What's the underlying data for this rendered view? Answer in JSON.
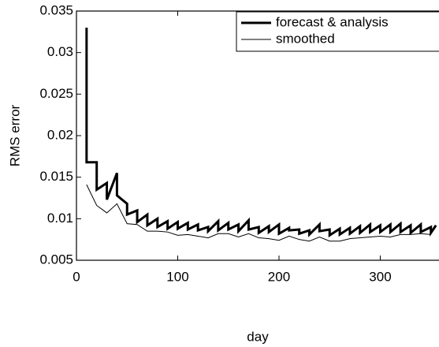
{
  "chart_data": {
    "type": "line",
    "xlabel": "day",
    "ylabel": "RMS error",
    "xlim": [
      0,
      358
    ],
    "ylim": [
      0.005,
      0.035
    ],
    "xticks": [
      0,
      100,
      200,
      300
    ],
    "yticks": [
      0.005,
      0.01,
      0.015,
      0.02,
      0.025,
      0.03,
      0.035
    ],
    "legend": "upper right",
    "series": [
      {
        "name": "forecast & analysis",
        "color": "#000000",
        "width": 3,
        "x": [
          10,
          10,
          20,
          20,
          30,
          30,
          40,
          40,
          50,
          50,
          60,
          60,
          70,
          70,
          80,
          80,
          90,
          90,
          100,
          100,
          110,
          110,
          120,
          120,
          130,
          130,
          140,
          140,
          150,
          150,
          160,
          160,
          170,
          170,
          180,
          180,
          190,
          190,
          200,
          200,
          210,
          210,
          220,
          220,
          230,
          230,
          240,
          240,
          250,
          250,
          260,
          260,
          270,
          270,
          280,
          280,
          290,
          290,
          300,
          300,
          310,
          310,
          320,
          320,
          330,
          330,
          340,
          340,
          350,
          350,
          355
        ],
        "values": [
          0.033,
          0.0168,
          0.0168,
          0.0135,
          0.0143,
          0.0123,
          0.0155,
          0.0128,
          0.0118,
          0.0105,
          0.011,
          0.0096,
          0.0105,
          0.0092,
          0.01,
          0.009,
          0.0097,
          0.0088,
          0.0096,
          0.0088,
          0.0095,
          0.0087,
          0.0093,
          0.0086,
          0.009,
          0.0085,
          0.0097,
          0.0086,
          0.0095,
          0.0087,
          0.0093,
          0.0085,
          0.0098,
          0.0087,
          0.009,
          0.0083,
          0.0091,
          0.0084,
          0.0093,
          0.0082,
          0.0089,
          0.0086,
          0.0087,
          0.0082,
          0.0086,
          0.0081,
          0.0093,
          0.0085,
          0.0087,
          0.008,
          0.0088,
          0.0081,
          0.0089,
          0.0082,
          0.0091,
          0.0083,
          0.0093,
          0.0084,
          0.0092,
          0.0084,
          0.0093,
          0.0084,
          0.0094,
          0.0084,
          0.0092,
          0.0083,
          0.0093,
          0.0084,
          0.009,
          0.0083,
          0.0092
        ]
      },
      {
        "name": "smoothed",
        "color": "#000000",
        "width": 1,
        "x": [
          10,
          20,
          30,
          40,
          50,
          60,
          70,
          80,
          90,
          100,
          110,
          120,
          130,
          140,
          150,
          160,
          170,
          180,
          190,
          200,
          210,
          220,
          230,
          240,
          250,
          260,
          270,
          280,
          290,
          300,
          310,
          320,
          330,
          340,
          350
        ],
        "values": [
          0.0141,
          0.0116,
          0.0107,
          0.0118,
          0.0094,
          0.0093,
          0.0085,
          0.0085,
          0.0084,
          0.008,
          0.0081,
          0.0079,
          0.0077,
          0.0082,
          0.0082,
          0.0078,
          0.0082,
          0.0077,
          0.0076,
          0.0074,
          0.0079,
          0.0075,
          0.0073,
          0.0078,
          0.0073,
          0.0073,
          0.0076,
          0.0077,
          0.0078,
          0.0079,
          0.0078,
          0.0081,
          0.0081,
          0.0082,
          0.0081
        ]
      }
    ]
  }
}
